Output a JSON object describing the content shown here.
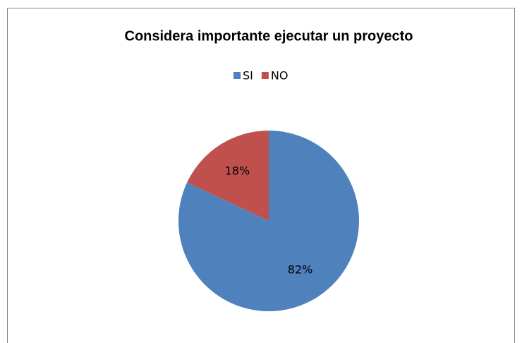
{
  "chart_data": {
    "type": "pie",
    "title": "Considera importante ejecutar un proyecto",
    "categories": [
      "SI",
      "NO"
    ],
    "values": [
      82,
      18
    ],
    "value_labels": [
      "82%",
      "18%"
    ],
    "colors": [
      "#4f81bd",
      "#c0504d"
    ],
    "legend": "top"
  }
}
